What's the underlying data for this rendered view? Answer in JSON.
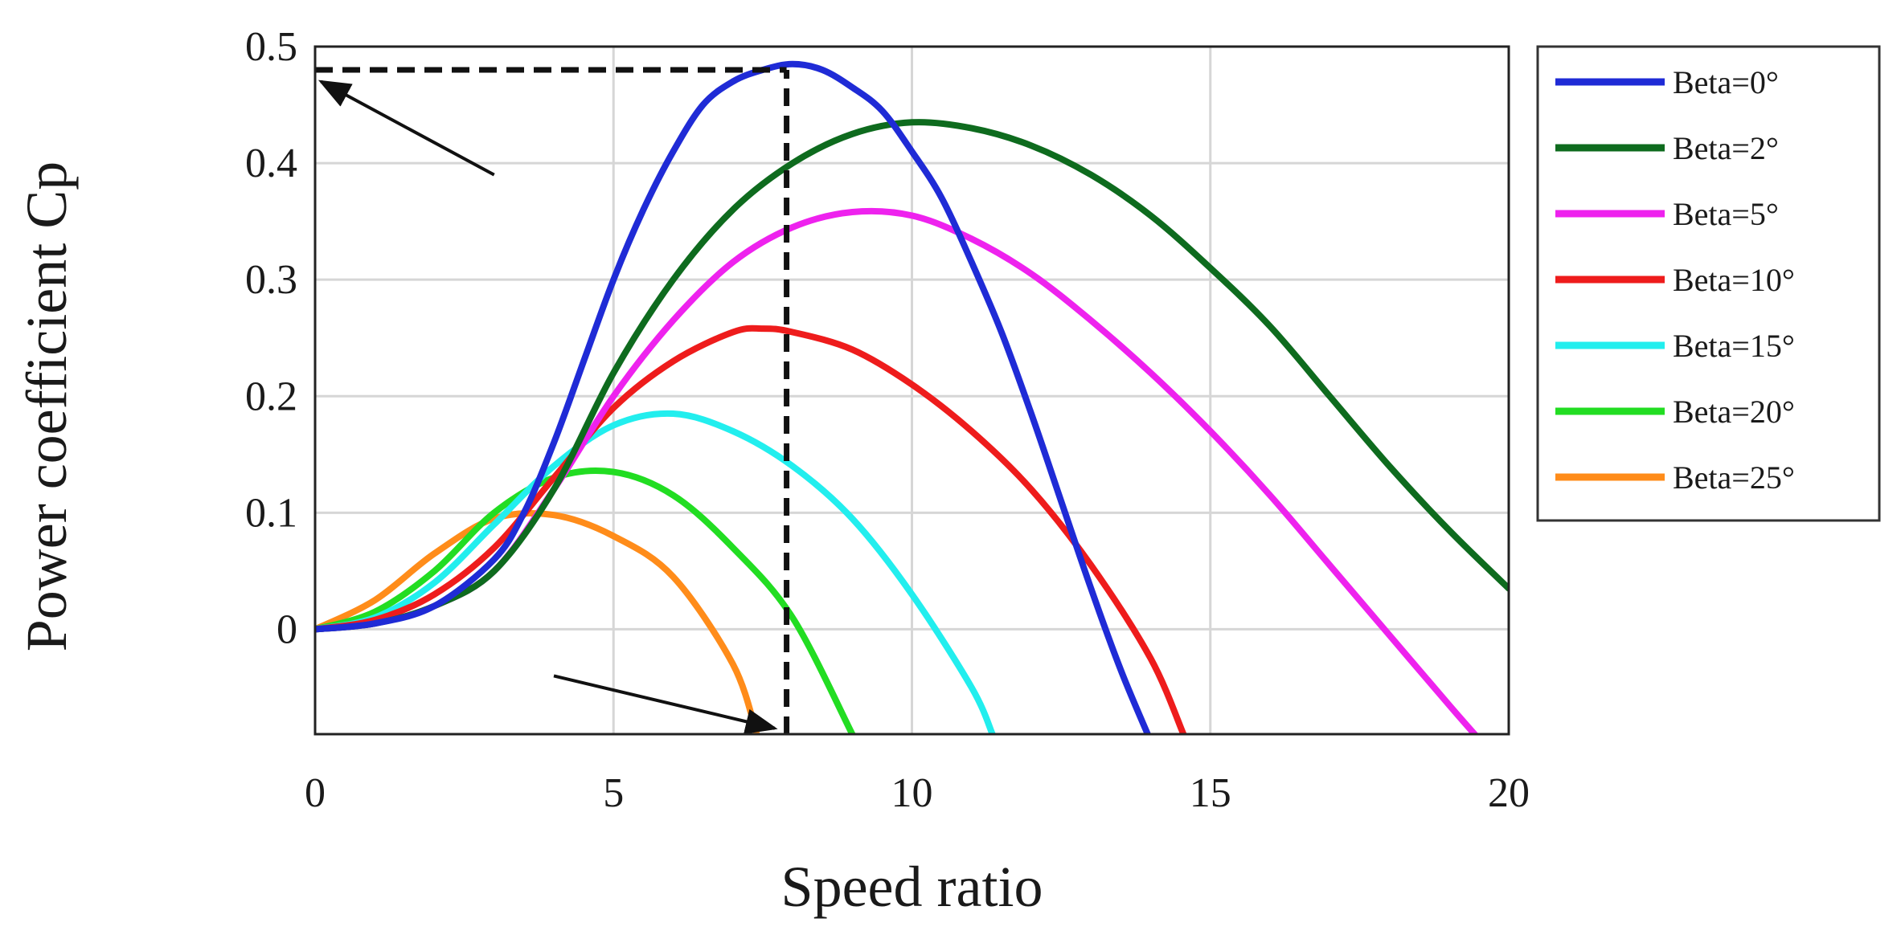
{
  "chart_data": {
    "type": "line",
    "title": "",
    "xlabel": "Speed ratio",
    "ylabel": "Power coefficient Cp",
    "xlim": [
      0,
      20
    ],
    "ylim": [
      -0.09,
      0.5
    ],
    "xticks": [
      0,
      5,
      10,
      15,
      20
    ],
    "yticks": [
      0,
      0.1,
      0.2,
      0.3,
      0.4,
      0.5
    ],
    "xtick_labels": [
      "0",
      "5",
      "10",
      "15",
      "20"
    ],
    "ytick_labels": [
      "0",
      "0.1",
      "0.2",
      "0.3",
      "0.4",
      "0.5"
    ],
    "grid": true,
    "legend_position": "outside-right-top",
    "series": [
      {
        "name": "Beta=0°",
        "color": "#1f2bd6",
        "x": [
          0,
          1,
          2,
          3,
          3.5,
          4,
          4.5,
          5,
          5.5,
          6,
          6.5,
          7,
          7.5,
          8,
          8.5,
          9,
          9.5,
          10,
          10.5,
          11,
          11.5,
          12,
          12.5,
          13,
          13.5,
          13.95
        ],
        "y": [
          0,
          0.005,
          0.02,
          0.06,
          0.1,
          0.16,
          0.23,
          0.3,
          0.36,
          0.41,
          0.45,
          0.47,
          0.48,
          0.485,
          0.48,
          0.465,
          0.445,
          0.41,
          0.37,
          0.315,
          0.255,
          0.185,
          0.11,
          0.035,
          -0.035,
          -0.09
        ]
      },
      {
        "name": "Beta=2°",
        "color": "#0e6b1e",
        "x": [
          0,
          1,
          2,
          3,
          4,
          5,
          6,
          7,
          8,
          9,
          10,
          11,
          12,
          13,
          14,
          15,
          16,
          17,
          18,
          19,
          20
        ],
        "y": [
          0,
          0.005,
          0.02,
          0.05,
          0.12,
          0.22,
          0.3,
          0.36,
          0.4,
          0.425,
          0.435,
          0.43,
          0.415,
          0.39,
          0.355,
          0.31,
          0.26,
          0.2,
          0.14,
          0.085,
          0.035
        ]
      },
      {
        "name": "Beta=5°",
        "color": "#ee22ee",
        "x": [
          0,
          1,
          2,
          3,
          4,
          5,
          6,
          7,
          8,
          9,
          10,
          11,
          12,
          13,
          14,
          15,
          16,
          17,
          18,
          19,
          19.6
        ],
        "y": [
          0,
          0.005,
          0.02,
          0.05,
          0.12,
          0.2,
          0.265,
          0.315,
          0.345,
          0.358,
          0.355,
          0.335,
          0.305,
          0.265,
          0.22,
          0.17,
          0.115,
          0.055,
          -0.005,
          -0.065,
          -0.1
        ]
      },
      {
        "name": "Beta=10°",
        "color": "#ee1c1c",
        "x": [
          0,
          1,
          2,
          3,
          4,
          5,
          6,
          7,
          7.5,
          8,
          9,
          10,
          11,
          12,
          13,
          14,
          14.55
        ],
        "y": [
          0,
          0.008,
          0.03,
          0.07,
          0.13,
          0.19,
          0.23,
          0.255,
          0.258,
          0.255,
          0.24,
          0.21,
          0.17,
          0.12,
          0.055,
          -0.025,
          -0.09
        ]
      },
      {
        "name": "Beta=15°",
        "color": "#22eeee",
        "x": [
          0,
          1,
          2,
          3,
          4,
          5,
          6,
          7,
          8,
          9,
          10,
          11,
          11.35
        ],
        "y": [
          0,
          0.01,
          0.04,
          0.09,
          0.14,
          0.175,
          0.185,
          0.17,
          0.14,
          0.095,
          0.03,
          -0.05,
          -0.09
        ]
      },
      {
        "name": "Beta=20°",
        "color": "#22dd22",
        "x": [
          0,
          1,
          2,
          3,
          4,
          5,
          6,
          7,
          8,
          9
        ],
        "y": [
          0,
          0.015,
          0.05,
          0.1,
          0.13,
          0.135,
          0.115,
          0.07,
          0.01,
          -0.09
        ]
      },
      {
        "name": "Beta=25°",
        "color": "#ff8c1a",
        "x": [
          0,
          1,
          2,
          3,
          4,
          5,
          6,
          7,
          7.4
        ],
        "y": [
          0,
          0.025,
          0.065,
          0.095,
          0.098,
          0.08,
          0.045,
          -0.03,
          -0.09
        ]
      }
    ],
    "annotations": [
      {
        "type": "dashed-line",
        "x": [
          0,
          7.9
        ],
        "y": [
          0.48,
          0.48
        ]
      },
      {
        "type": "dashed-line",
        "x": [
          7.9,
          7.9
        ],
        "y": [
          -0.09,
          0.48
        ]
      },
      {
        "type": "arrow",
        "x": [
          3.0,
          0.1
        ],
        "y": [
          0.39,
          0.47
        ]
      },
      {
        "type": "arrow",
        "x": [
          4.0,
          7.7
        ],
        "y": [
          -0.04,
          -0.085
        ]
      }
    ]
  }
}
